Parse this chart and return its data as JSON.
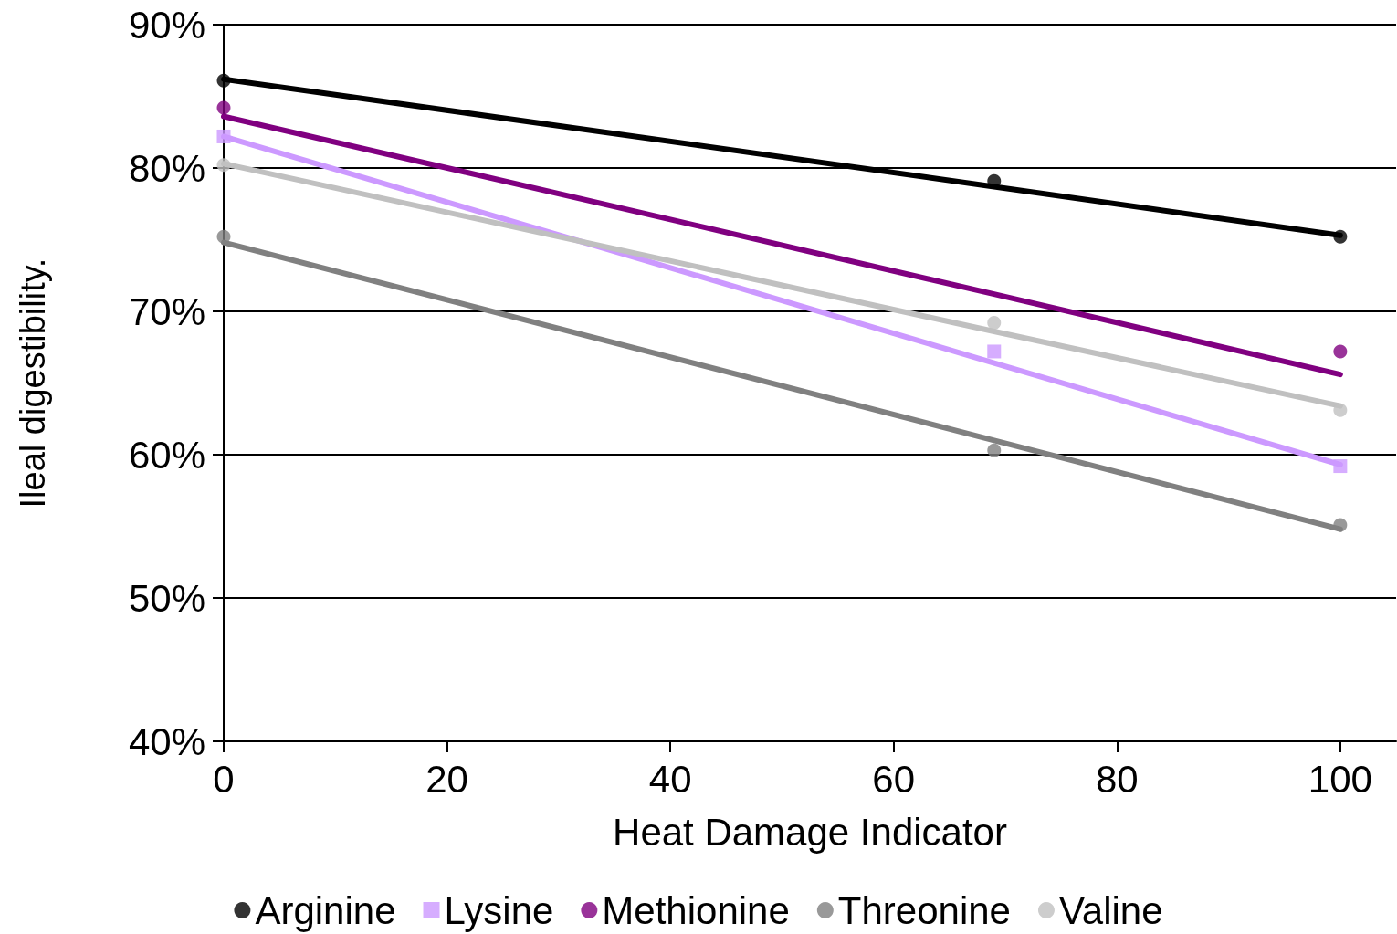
{
  "chart_data": {
    "type": "scatter",
    "xlabel": "Heat Damage Indicator",
    "ylabel": "Ileal digestibility.",
    "xlim": [
      0,
      105
    ],
    "xticks": [
      0,
      20,
      40,
      60,
      80,
      100
    ],
    "ylim": [
      40,
      90
    ],
    "yticks": [
      {
        "value": 40,
        "label": "40%"
      },
      {
        "value": 50,
        "label": "50%"
      },
      {
        "value": 60,
        "label": "60%"
      },
      {
        "value": 70,
        "label": "70%"
      },
      {
        "value": 80,
        "label": "80%"
      },
      {
        "value": 90,
        "label": "90%"
      }
    ],
    "grid": "y",
    "legend": "bottom",
    "x": [
      0,
      69,
      100
    ],
    "series": [
      {
        "name": "Arginine",
        "color": "#000000",
        "marker": "circle",
        "values": [
          86.1,
          79.1,
          75.2
        ]
      },
      {
        "name": "Lysine",
        "color": "#cc99ff",
        "marker": "square",
        "values": [
          82.2,
          67.2,
          59.2
        ]
      },
      {
        "name": "Methionine",
        "color": "#800080",
        "marker": "circle",
        "values": [
          84.2,
          null,
          67.2
        ]
      },
      {
        "name": "Threonine",
        "color": "#808080",
        "marker": "circle",
        "values": [
          75.2,
          60.3,
          55.1
        ]
      },
      {
        "name": "Valine",
        "color": "#c0c0c0",
        "marker": "circle",
        "values": [
          80.2,
          69.2,
          63.1
        ]
      },
      {
        "type": "line",
        "color": "#000000",
        "marker": "none",
        "values": [
          86.2,
          78.7,
          75.3
        ]
      },
      {
        "type": "line",
        "color": "#cc99ff",
        "marker": "none",
        "values": [
          82.2,
          66.4,
          59.3
        ]
      },
      {
        "type": "line",
        "color": "#800080",
        "marker": "none",
        "values": [
          83.6,
          71.2,
          65.6
        ]
      },
      {
        "type": "line",
        "color": "#808080",
        "marker": "none",
        "values": [
          74.8,
          61.0,
          54.8
        ]
      },
      {
        "type": "line",
        "color": "#c0c0c0",
        "marker": "none",
        "values": [
          80.3,
          68.6,
          63.4
        ]
      }
    ]
  }
}
